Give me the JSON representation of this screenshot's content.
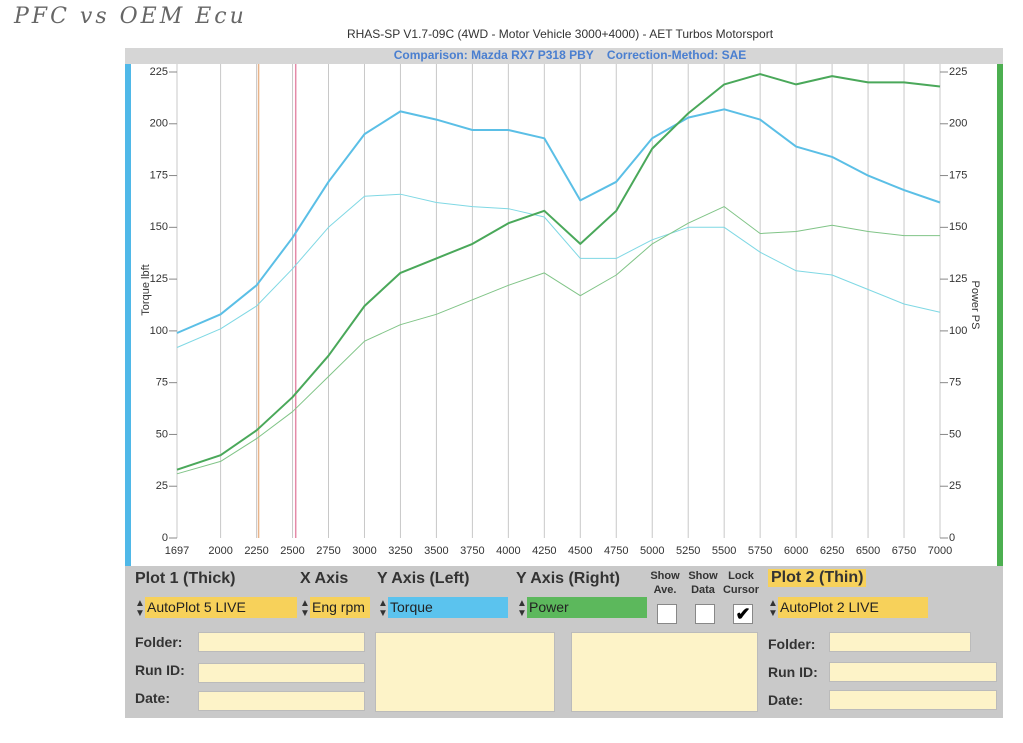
{
  "handwriting": "PFC vs OEM Ecu",
  "chart_data": {
    "type": "line",
    "title": "RHAS-SP V1.7-09C  (4WD - Motor Vehicle 3000+4000) - AET Turbos Motorsport",
    "subtitle": "Comparison: Mazda RX7 P318 PBY    Correction-Method: SAE",
    "ylabel": "Torque lbft",
    "y2label": "Power PS",
    "x": [
      1697,
      2000,
      2250,
      2500,
      2750,
      3000,
      3250,
      3500,
      3750,
      4000,
      4250,
      4500,
      4750,
      5000,
      5250,
      5500,
      5750,
      6000,
      6250,
      6500,
      6750,
      7000
    ],
    "xlim": [
      1697,
      7000
    ],
    "xticks": [
      1697,
      2000,
      2250,
      2500,
      2750,
      3000,
      3250,
      3500,
      3750,
      4000,
      4250,
      4500,
      4750,
      5000,
      5250,
      5500,
      5750,
      6000,
      6250,
      6500,
      6750,
      7000
    ],
    "ylim": [
      0,
      225
    ],
    "yticks": [
      0,
      25,
      50,
      75,
      100,
      125,
      150,
      175,
      200,
      225
    ],
    "y2lim": [
      0,
      225
    ],
    "y2ticks": [
      0,
      25,
      50,
      75,
      100,
      125,
      150,
      175,
      200,
      225
    ],
    "grid": "x",
    "cursor_lines": [
      {
        "x": 2264,
        "color": "#e8b48a"
      },
      {
        "x": 2522,
        "color": "#e58aa8"
      }
    ],
    "series": [
      {
        "color": "#5bbfe6",
        "width": 2,
        "axis": "y",
        "values": [
          99,
          108,
          122,
          145,
          172,
          195,
          206,
          202,
          197,
          197,
          193,
          163,
          172,
          193,
          203,
          207,
          202,
          189,
          184,
          175,
          168,
          162
        ]
      },
      {
        "color": "#7fd8e4",
        "width": 1,
        "axis": "y",
        "values": [
          92,
          101,
          112,
          130,
          150,
          165,
          166,
          162,
          160,
          159,
          155,
          135,
          135,
          144,
          150,
          150,
          138,
          129,
          127,
          120,
          113,
          109
        ]
      },
      {
        "color": "#4aa85a",
        "width": 2,
        "axis": "y2",
        "values": [
          33,
          40,
          52,
          68,
          88,
          112,
          128,
          135,
          142,
          152,
          158,
          142,
          158,
          188,
          205,
          219,
          224,
          219,
          223,
          220,
          220,
          218
        ]
      },
      {
        "color": "#80c487",
        "width": 1,
        "axis": "y2",
        "values": [
          31,
          37,
          48,
          61,
          78,
          95,
          103,
          108,
          115,
          122,
          128,
          117,
          127,
          142,
          152,
          160,
          147,
          148,
          151,
          148,
          146,
          146
        ]
      }
    ]
  },
  "panel": {
    "plot1": {
      "heading": "Plot 1 (Thick)",
      "selection": "AutoPlot 5 LIVE"
    },
    "x_axis": {
      "heading": "X Axis",
      "selection": "Eng rpm"
    },
    "y_left": {
      "heading": "Y Axis (Left)",
      "selection": "Torque"
    },
    "y_right": {
      "heading": "Y Axis (Right)",
      "selection": "Power"
    },
    "checkboxes": [
      {
        "lines": [
          "Show",
          "Ave."
        ],
        "checked": false
      },
      {
        "lines": [
          "Show",
          "Data"
        ],
        "checked": false
      },
      {
        "lines": [
          "Lock",
          "Cursor"
        ],
        "checked": true
      }
    ],
    "plot2": {
      "heading": "Plot 2 (Thin)",
      "selection": "AutoPlot 2 LIVE"
    },
    "left_fields": [
      "Folder:",
      "Run ID:",
      "Date:"
    ],
    "right_fields": [
      "Folder:",
      "Run ID:",
      "Date:"
    ]
  }
}
